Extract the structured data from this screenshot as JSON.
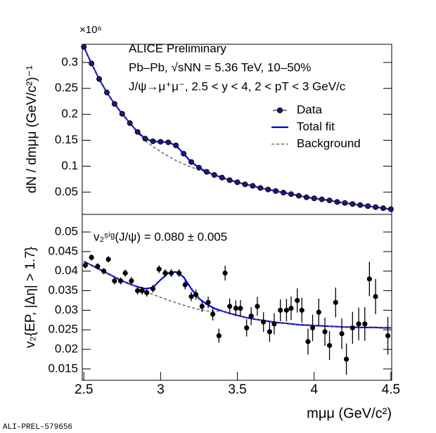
{
  "chart_data": [
    {
      "type": "line",
      "multiplier": "×10⁶",
      "ylabel": "dN / dmμμ (GeV/c²)⁻¹",
      "annotations": [
        "ALICE Preliminary",
        "Pb–Pb,  √sNN = 5.36 TeV, 10–50%",
        "J/ψ→μ⁺μ⁻, 2.5 < y < 4, 2 < pT < 3 GeV/c"
      ],
      "xlim": [
        2.49,
        4.505
      ],
      "ylim": [
        0.007,
        0.335
      ],
      "yticks": [
        0.05,
        0.1,
        0.15,
        0.2,
        0.25,
        0.3
      ],
      "legend": "upper right",
      "x": [
        2.5,
        2.55,
        2.6,
        2.65,
        2.7,
        2.75,
        2.8,
        2.85,
        2.9,
        2.95,
        3.0,
        3.05,
        3.1,
        3.15,
        3.2,
        3.25,
        3.3,
        3.35,
        3.4,
        3.45,
        3.5,
        3.55,
        3.6,
        3.65,
        3.7,
        3.75,
        3.8,
        3.85,
        3.9,
        3.95,
        4.0,
        4.05,
        4.1,
        4.15,
        4.2,
        4.25,
        4.3,
        4.35,
        4.4,
        4.45,
        4.5
      ],
      "series": [
        {
          "name": "Data",
          "color": "#1a1a6e",
          "style": "points",
          "values": [
            0.33,
            0.298,
            0.268,
            0.242,
            0.22,
            0.201,
            0.183,
            0.166,
            0.153,
            0.148,
            0.147,
            0.146,
            0.14,
            0.124,
            0.108,
            0.097,
            0.089,
            0.083,
            0.078,
            0.073,
            0.069,
            0.065,
            0.062,
            0.058,
            0.055,
            0.052,
            0.049,
            0.046,
            0.043,
            0.04,
            0.038,
            0.036,
            0.034,
            0.031,
            0.029,
            0.027,
            0.025,
            0.023,
            0.021,
            0.019,
            0.017
          ]
        },
        {
          "name": "Total fit",
          "color": "#0000ee",
          "style": "solid",
          "values": [
            0.33,
            0.298,
            0.268,
            0.242,
            0.22,
            0.201,
            0.183,
            0.166,
            0.153,
            0.148,
            0.147,
            0.146,
            0.14,
            0.124,
            0.108,
            0.097,
            0.089,
            0.083,
            0.078,
            0.073,
            0.069,
            0.065,
            0.062,
            0.058,
            0.055,
            0.052,
            0.049,
            0.046,
            0.043,
            0.04,
            0.038,
            0.036,
            0.034,
            0.031,
            0.029,
            0.027,
            0.025,
            0.023,
            0.021,
            0.019,
            0.017
          ]
        },
        {
          "name": "Background",
          "color": "#555555",
          "style": "dashed",
          "values": [
            0.33,
            0.298,
            0.268,
            0.242,
            0.22,
            0.201,
            0.183,
            0.164,
            0.149,
            0.138,
            0.128,
            0.119,
            0.111,
            0.104,
            0.098,
            0.093,
            0.088,
            0.083,
            0.078,
            0.073,
            0.069,
            0.065,
            0.062,
            0.058,
            0.055,
            0.052,
            0.049,
            0.046,
            0.043,
            0.04,
            0.038,
            0.036,
            0.034,
            0.031,
            0.029,
            0.027,
            0.025,
            0.023,
            0.021,
            0.019,
            0.017
          ]
        }
      ]
    },
    {
      "type": "line",
      "ylabel": "v₂{EP, |Δη| > 1.7}",
      "xlabel": "mμμ (GeV/c²)",
      "annotations": [
        "v₂ˢⁱᵍ(J/ψ) = 0.080 ± 0.005"
      ],
      "xlim": [
        2.49,
        4.505
      ],
      "ylim": [
        0.0121,
        0.0545
      ],
      "xticks": [
        2.5,
        3,
        3.5,
        4,
        4.5
      ],
      "yticks": [
        0.015,
        0.02,
        0.025,
        0.03,
        0.035,
        0.04,
        0.045,
        0.05
      ],
      "x": [
        2.5,
        2.55,
        2.6,
        2.65,
        2.7,
        2.75,
        2.8,
        2.85,
        2.9,
        2.95,
        3.0,
        3.05,
        3.1,
        3.15,
        3.2,
        3.25,
        3.3,
        3.35,
        3.4,
        3.45,
        3.5,
        3.55,
        3.6,
        3.65,
        3.7,
        3.75,
        3.8,
        3.85,
        3.9,
        3.95,
        4.0,
        4.05,
        4.1,
        4.15,
        4.2,
        4.25,
        4.3,
        4.35,
        4.4,
        4.45,
        4.5
      ],
      "series": [
        {
          "name": "Data",
          "color": "#000000",
          "style": "points",
          "x": [
            2.51,
            2.55,
            2.59,
            2.63,
            2.66,
            2.7,
            2.74,
            2.77,
            2.81,
            2.85,
            2.88,
            2.91,
            2.95,
            2.99,
            3.03,
            3.07,
            3.12,
            3.16,
            3.2,
            3.23,
            3.27,
            3.31,
            3.34,
            3.38,
            3.42,
            3.45,
            3.49,
            3.52,
            3.56,
            3.59,
            3.63,
            3.67,
            3.71,
            3.74,
            3.78,
            3.82,
            3.85,
            3.89,
            3.92,
            3.96,
            3.99,
            4.03,
            4.07,
            4.1,
            4.14,
            4.18,
            4.21,
            4.25,
            4.29,
            4.33,
            4.36,
            4.4,
            4.48
          ],
          "values": [
            0.0415,
            0.0435,
            0.0412,
            0.04,
            0.043,
            0.0375,
            0.0375,
            0.0395,
            0.0375,
            0.035,
            0.035,
            0.0345,
            0.0355,
            0.0405,
            0.0395,
            0.0395,
            0.0395,
            0.0365,
            0.0335,
            0.034,
            0.031,
            0.032,
            0.029,
            0.0235,
            0.0395,
            0.031,
            0.0305,
            0.0305,
            0.0255,
            0.0285,
            0.031,
            0.027,
            0.0245,
            0.0265,
            0.03,
            0.03,
            0.0305,
            0.0325,
            0.03,
            0.022,
            0.0255,
            0.0295,
            0.0245,
            0.021,
            0.032,
            0.024,
            0.0175,
            0.0255,
            0.0265,
            0.0265,
            0.038,
            0.0335,
            0.0235
          ],
          "errors": [
            0.0008,
            0.0008,
            0.0008,
            0.0008,
            0.0008,
            0.0009,
            0.0009,
            0.0009,
            0.001,
            0.001,
            0.001,
            0.001,
            0.001,
            0.001,
            0.001,
            0.001,
            0.001,
            0.0012,
            0.0012,
            0.0013,
            0.0014,
            0.0015,
            0.0016,
            0.0018,
            0.0019,
            0.002,
            0.002,
            0.0021,
            0.0022,
            0.0023,
            0.0024,
            0.0025,
            0.0026,
            0.0027,
            0.0028,
            0.0029,
            0.003,
            0.0031,
            0.0032,
            0.0033,
            0.0034,
            0.0035,
            0.0036,
            0.0037,
            0.0038,
            0.0039,
            0.004,
            0.0041,
            0.0042,
            0.0043,
            0.0044,
            0.0045,
            0.0048
          ]
        },
        {
          "name": "Total fit",
          "color": "#0000ee",
          "style": "solid",
          "values": [
            0.0425,
            0.0415,
            0.0405,
            0.0395,
            0.0385,
            0.0375,
            0.0367,
            0.036,
            0.0355,
            0.0358,
            0.0378,
            0.0395,
            0.0398,
            0.0385,
            0.0355,
            0.033,
            0.0315,
            0.0305,
            0.0298,
            0.0292,
            0.0287,
            0.0282,
            0.0278,
            0.0275,
            0.0272,
            0.0269,
            0.0267,
            0.0265,
            0.0263,
            0.0262,
            0.0261,
            0.026,
            0.0259,
            0.0258,
            0.0257,
            0.0257,
            0.0256,
            0.0256,
            0.0256,
            0.0255,
            0.0255
          ]
        },
        {
          "name": "Background",
          "color": "#555555",
          "style": "dashed",
          "values": [
            0.0425,
            0.0415,
            0.0405,
            0.0395,
            0.0385,
            0.0375,
            0.0367,
            0.036,
            0.0348,
            0.034,
            0.0333,
            0.0326,
            0.0319,
            0.0313,
            0.0307,
            0.0302,
            0.0298,
            0.0298,
            0.0298,
            0.0292,
            0.0287,
            0.0282,
            0.0278,
            0.0275,
            0.0272,
            0.0269,
            0.0267,
            0.0265,
            0.0263,
            0.0262,
            0.0261,
            0.026,
            0.0259,
            0.0258,
            0.0257,
            0.0257,
            0.0256,
            0.0256,
            0.0256,
            0.0255,
            0.0255
          ]
        }
      ]
    }
  ],
  "footer": "ALI-PREL-579656"
}
